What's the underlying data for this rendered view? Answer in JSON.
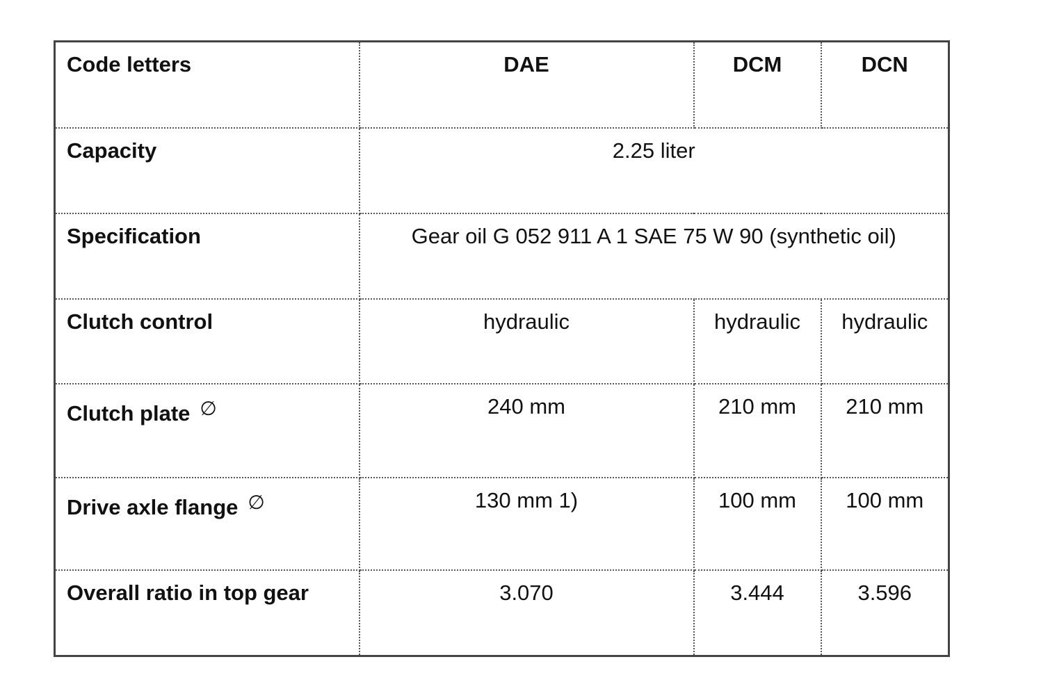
{
  "table": {
    "header": {
      "label": "Code letters",
      "codes": [
        "DAE",
        "DCM",
        "DCN"
      ]
    },
    "capacity": {
      "label": "Capacity",
      "value": "2.25 liter"
    },
    "specification": {
      "label": "Specification",
      "value": "Gear oil G 052 911 A 1 SAE 75 W 90 (synthetic oil)"
    },
    "clutch_control": {
      "label": "Clutch control",
      "values": [
        "hydraulic",
        "hydraulic",
        "hydraulic"
      ]
    },
    "clutch_plate": {
      "label": "Clutch plate",
      "symbol": "∅",
      "values": [
        "240 mm",
        "210 mm",
        "210 mm"
      ]
    },
    "drive_axle_flange": {
      "label": "Drive axle flange",
      "symbol": "∅",
      "values": [
        "130 mm 1)",
        "100 mm",
        "100 mm"
      ]
    },
    "overall_ratio": {
      "label": "Overall ratio in top gear",
      "values": [
        "3.070",
        "3.444",
        "3.596"
      ]
    }
  }
}
